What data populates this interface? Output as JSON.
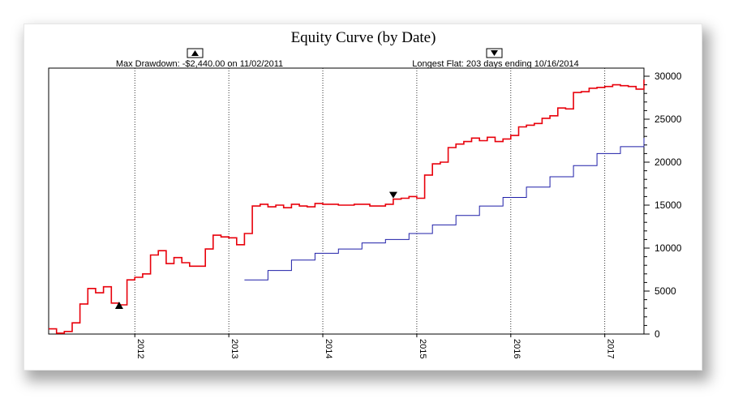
{
  "chart_data": {
    "type": "line",
    "title": "Equity Curve (by Date)",
    "annotations": {
      "max_drawdown": "Max Drawdown: -$2,440.00 on 11/02/2011",
      "longest_flat": "Longest Flat: 203 days ending 10/16/2014"
    },
    "x_start": "2011-02",
    "x_end": "2017-06",
    "x_ticks": [
      "2012",
      "2013",
      "2014",
      "2015",
      "2016",
      "2017"
    ],
    "y_ticks": [
      "0",
      "5000",
      "10000",
      "15000",
      "20000",
      "25000",
      "30000"
    ],
    "ylim": [
      0,
      30000
    ],
    "grid": true,
    "series": [
      {
        "color": "#e8000b",
        "points": [
          [
            "2011-02",
            600
          ],
          [
            "2011-03",
            100
          ],
          [
            "2011-04",
            300
          ],
          [
            "2011-05",
            1300
          ],
          [
            "2011-06",
            3500
          ],
          [
            "2011-07",
            5300
          ],
          [
            "2011-08",
            4800
          ],
          [
            "2011-09",
            5500
          ],
          [
            "2011-10",
            3600
          ],
          [
            "2011-11",
            3400
          ],
          [
            "2011-12",
            6300
          ],
          [
            "2012-01",
            6600
          ],
          [
            "2012-02",
            7000
          ],
          [
            "2012-03",
            9200
          ],
          [
            "2012-04",
            9700
          ],
          [
            "2012-05",
            8200
          ],
          [
            "2012-06",
            8900
          ],
          [
            "2012-07",
            8300
          ],
          [
            "2012-08",
            7900
          ],
          [
            "2012-09",
            7900
          ],
          [
            "2012-10",
            9900
          ],
          [
            "2012-11",
            11500
          ],
          [
            "2012-12",
            11300
          ],
          [
            "2013-01",
            11200
          ],
          [
            "2013-02",
            10400
          ],
          [
            "2013-03",
            11700
          ],
          [
            "2013-04",
            14900
          ],
          [
            "2013-05",
            15100
          ],
          [
            "2013-06",
            14800
          ],
          [
            "2013-07",
            15000
          ],
          [
            "2013-08",
            14700
          ],
          [
            "2013-09",
            15100
          ],
          [
            "2013-10",
            14900
          ],
          [
            "2013-11",
            14800
          ],
          [
            "2013-12",
            15200
          ],
          [
            "2014-01",
            15100
          ],
          [
            "2014-03",
            15000
          ],
          [
            "2014-05",
            15100
          ],
          [
            "2014-07",
            14900
          ],
          [
            "2014-09",
            15100
          ],
          [
            "2014-10",
            15700
          ],
          [
            "2014-11",
            15800
          ],
          [
            "2014-12",
            16000
          ],
          [
            "2015-01",
            15800
          ],
          [
            "2015-02",
            18500
          ],
          [
            "2015-03",
            19800
          ],
          [
            "2015-04",
            20000
          ],
          [
            "2015-05",
            21700
          ],
          [
            "2015-06",
            22100
          ],
          [
            "2015-07",
            22400
          ],
          [
            "2015-08",
            22800
          ],
          [
            "2015-09",
            22500
          ],
          [
            "2015-10",
            22900
          ],
          [
            "2015-11",
            22400
          ],
          [
            "2015-12",
            22700
          ],
          [
            "2016-01",
            23100
          ],
          [
            "2016-02",
            24100
          ],
          [
            "2016-03",
            24300
          ],
          [
            "2016-04",
            24500
          ],
          [
            "2016-05",
            25100
          ],
          [
            "2016-06",
            25400
          ],
          [
            "2016-07",
            26300
          ],
          [
            "2016-08",
            26200
          ],
          [
            "2016-09",
            28100
          ],
          [
            "2016-10",
            28200
          ],
          [
            "2016-11",
            28600
          ],
          [
            "2016-12",
            28700
          ],
          [
            "2017-01",
            28800
          ],
          [
            "2017-02",
            29000
          ],
          [
            "2017-03",
            28900
          ],
          [
            "2017-04",
            28800
          ],
          [
            "2017-05",
            28500
          ],
          [
            "2017-06",
            29600
          ]
        ]
      },
      {
        "color": "#1f1fa8",
        "points": [
          [
            "2013-03",
            6300
          ],
          [
            "2013-06",
            7400
          ],
          [
            "2013-09",
            8600
          ],
          [
            "2013-12",
            9400
          ],
          [
            "2014-03",
            9900
          ],
          [
            "2014-06",
            10600
          ],
          [
            "2014-09",
            11000
          ],
          [
            "2014-12",
            11700
          ],
          [
            "2015-03",
            12700
          ],
          [
            "2015-06",
            13800
          ],
          [
            "2015-09",
            14900
          ],
          [
            "2015-12",
            15900
          ],
          [
            "2016-03",
            17100
          ],
          [
            "2016-06",
            18300
          ],
          [
            "2016-09",
            19600
          ],
          [
            "2016-12",
            21000
          ],
          [
            "2017-03",
            21800
          ],
          [
            "2017-06",
            22800
          ]
        ]
      }
    ],
    "markers": [
      {
        "type": "up-triangle",
        "x": "2011-11",
        "y": 3400
      },
      {
        "type": "down-triangle",
        "x": "2014-10",
        "y": 15700
      }
    ]
  }
}
